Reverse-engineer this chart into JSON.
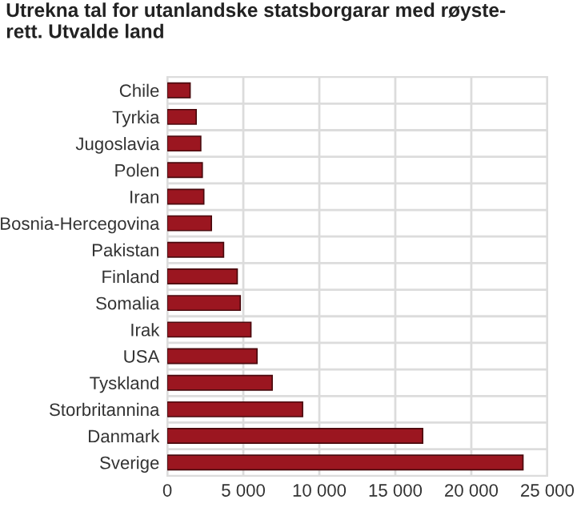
{
  "chart_data": {
    "type": "bar",
    "orientation": "horizontal",
    "title": "Utrekna tal for utanlandske statsborgarar med røyste-\nrett. Utvalde land",
    "categories": [
      "Chile",
      "Tyrkia",
      "Jugoslavia",
      "Polen",
      "Iran",
      "Bosnia-Hercegovina",
      "Pakistan",
      "Finland",
      "Somalia",
      "Irak",
      "USA",
      "Tyskland",
      "Storbritannina",
      "Danmark",
      "Sverige"
    ],
    "values": [
      1500,
      1900,
      2200,
      2300,
      2400,
      2900,
      3700,
      4600,
      4800,
      5500,
      5900,
      6900,
      8900,
      16800,
      23400
    ],
    "color": "#9b1620",
    "xlim": [
      0,
      25000
    ],
    "xticks": [
      0,
      {
        "value": 5000,
        "label": "5 000"
      },
      {
        "value": 10000,
        "label": "10 000"
      },
      {
        "value": 15000,
        "label": "15 000"
      },
      {
        "value": 20000,
        "label": "20 000"
      },
      {
        "value": 25000,
        "label": "25 000"
      }
    ],
    "grid": true
  }
}
